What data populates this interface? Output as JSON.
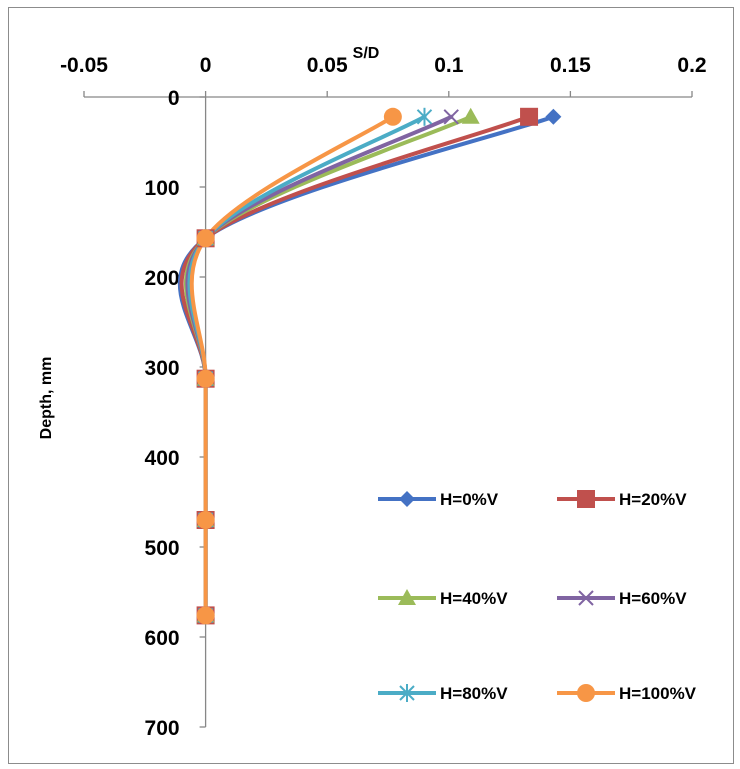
{
  "chart_data": {
    "type": "line",
    "title": "",
    "xlabel": "S/D",
    "ylabel": "Depth, mm",
    "x_axis_position": "top",
    "y_axis_inverted": true,
    "xlim": [
      -0.05,
      0.2
    ],
    "ylim": [
      0,
      700
    ],
    "x_ticks": [
      -0.05,
      0,
      0.05,
      0.1,
      0.15,
      0.2
    ],
    "x_tick_labels": [
      "-0.05",
      "0",
      "0.05",
      "0.1",
      "0.15",
      "0.2"
    ],
    "y_ticks": [
      0,
      100,
      200,
      300,
      400,
      500,
      600,
      700
    ],
    "y_tick_labels": [
      "0",
      "100",
      "200",
      "300",
      "400",
      "500",
      "600",
      "700"
    ],
    "grid": false,
    "smooth_lines": true,
    "legend_position": "bottom-right",
    "depths": [
      22,
      157,
      313,
      470,
      576
    ],
    "series": [
      {
        "name": "H=0%V",
        "color": "#4472C4",
        "marker": "diamond",
        "s_over_d": [
          0.143,
          0,
          0,
          0,
          0
        ]
      },
      {
        "name": "H=20%V",
        "color": "#C0504D",
        "marker": "square",
        "s_over_d": [
          0.133,
          0,
          0,
          0,
          0
        ]
      },
      {
        "name": "H=40%V",
        "color": "#9BBB59",
        "marker": "triangle",
        "s_over_d": [
          0.109,
          0,
          0,
          0,
          0
        ]
      },
      {
        "name": "H=60%V",
        "color": "#8064A2",
        "marker": "x",
        "s_over_d": [
          0.101,
          0,
          0,
          0,
          0
        ]
      },
      {
        "name": "H=80%V",
        "color": "#4BACC6",
        "marker": "star",
        "s_over_d": [
          0.09,
          0,
          0,
          0,
          0
        ]
      },
      {
        "name": "H=100%V",
        "color": "#F79646",
        "marker": "circle",
        "s_over_d": [
          0.077,
          0,
          0,
          0,
          0
        ]
      }
    ]
  }
}
